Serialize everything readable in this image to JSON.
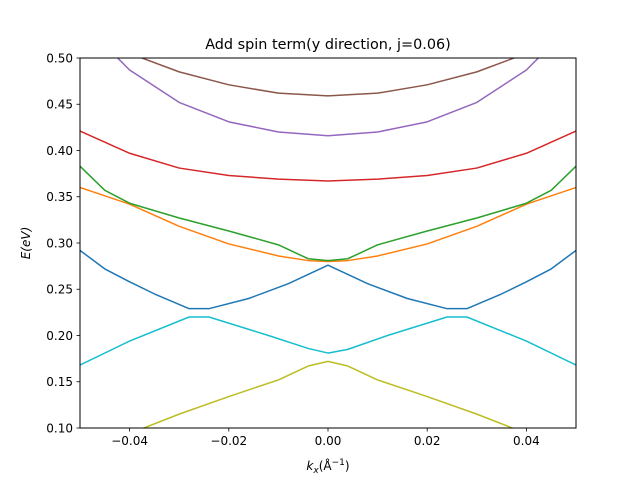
{
  "chart_data": {
    "type": "line",
    "title": "Add spin term(y direction, j=0.06)",
    "xlabel": "k_x(Å⁻¹)",
    "xlabel_main": "k",
    "xlabel_sub": "x",
    "xlabel_unit_open": "(Å",
    "xlabel_unit_sup": "−1",
    "xlabel_unit_close": ")",
    "ylabel": "E(eV)",
    "xlim": [
      -0.05,
      0.05
    ],
    "ylim": [
      0.1,
      0.5
    ],
    "xticks": [
      -0.04,
      -0.02,
      0.0,
      0.02,
      0.04
    ],
    "xtick_labels": [
      "−0.04",
      "−0.02",
      "0.00",
      "0.02",
      "0.04"
    ],
    "yticks": [
      0.1,
      0.15,
      0.2,
      0.25,
      0.3,
      0.35,
      0.4,
      0.45,
      0.5
    ],
    "ytick_labels": [
      "0.10",
      "0.15",
      "0.20",
      "0.25",
      "0.30",
      "0.35",
      "0.40",
      "0.45",
      "0.50"
    ],
    "grid": false,
    "legend": "none",
    "series": [
      {
        "name": "band-olive",
        "color": "#bcbd22",
        "x": [
          -0.05,
          -0.04,
          -0.03,
          -0.02,
          -0.01,
          -0.004,
          0.0,
          0.004,
          0.01,
          0.02,
          0.03,
          0.04,
          0.05
        ],
        "y": [
          0.081,
          0.094,
          0.115,
          0.134,
          0.152,
          0.167,
          0.172,
          0.167,
          0.152,
          0.134,
          0.115,
          0.094,
          0.081
        ]
      },
      {
        "name": "band-cyan",
        "color": "#17becf",
        "x": [
          -0.05,
          -0.04,
          -0.028,
          -0.024,
          -0.012,
          -0.004,
          0.0,
          0.004,
          0.012,
          0.024,
          0.028,
          0.04,
          0.05
        ],
        "y": [
          0.168,
          0.194,
          0.22,
          0.22,
          0.2,
          0.186,
          0.181,
          0.185,
          0.2,
          0.22,
          0.22,
          0.194,
          0.168
        ]
      },
      {
        "name": "band-blue",
        "color": "#1f77b4",
        "x": [
          -0.05,
          -0.045,
          -0.04,
          -0.035,
          -0.028,
          -0.024,
          -0.016,
          -0.008,
          0.0,
          0.008,
          0.016,
          0.024,
          0.028,
          0.035,
          0.04,
          0.045,
          0.05
        ],
        "y": [
          0.292,
          0.272,
          0.258,
          0.245,
          0.229,
          0.229,
          0.24,
          0.256,
          0.276,
          0.256,
          0.24,
          0.229,
          0.229,
          0.245,
          0.258,
          0.272,
          0.292
        ]
      },
      {
        "name": "band-orange",
        "color": "#ff7f0e",
        "x": [
          -0.05,
          -0.04,
          -0.03,
          -0.02,
          -0.01,
          -0.004,
          0.0,
          0.004,
          0.01,
          0.02,
          0.03,
          0.04,
          0.05
        ],
        "y": [
          0.36,
          0.342,
          0.318,
          0.299,
          0.286,
          0.281,
          0.28,
          0.281,
          0.286,
          0.299,
          0.318,
          0.342,
          0.36
        ]
      },
      {
        "name": "band-green",
        "color": "#2ca02c",
        "x": [
          -0.05,
          -0.045,
          -0.04,
          -0.03,
          -0.02,
          -0.01,
          -0.004,
          0.0,
          0.004,
          0.01,
          0.02,
          0.03,
          0.04,
          0.045,
          0.05
        ],
        "y": [
          0.383,
          0.357,
          0.343,
          0.327,
          0.313,
          0.298,
          0.283,
          0.281,
          0.283,
          0.298,
          0.313,
          0.327,
          0.343,
          0.357,
          0.383
        ]
      },
      {
        "name": "band-red",
        "color": "#d62728",
        "x": [
          -0.05,
          -0.04,
          -0.03,
          -0.02,
          -0.01,
          0.0,
          0.01,
          0.02,
          0.03,
          0.04,
          0.05
        ],
        "y": [
          0.421,
          0.397,
          0.381,
          0.373,
          0.369,
          0.367,
          0.369,
          0.373,
          0.381,
          0.397,
          0.421
        ]
      },
      {
        "name": "band-purple",
        "color": "#9467bd",
        "x": [
          -0.05,
          -0.04,
          -0.03,
          -0.02,
          -0.01,
          0.0,
          0.01,
          0.02,
          0.03,
          0.04,
          0.05
        ],
        "y": [
          0.541,
          0.487,
          0.452,
          0.431,
          0.42,
          0.416,
          0.42,
          0.431,
          0.452,
          0.487,
          0.541
        ]
      },
      {
        "name": "band-brown",
        "color": "#8c564b",
        "x": [
          -0.05,
          -0.04,
          -0.03,
          -0.02,
          -0.01,
          0.0,
          0.01,
          0.02,
          0.03,
          0.04,
          0.05
        ],
        "y": [
          0.526,
          0.505,
          0.485,
          0.471,
          0.462,
          0.459,
          0.462,
          0.471,
          0.485,
          0.505,
          0.526
        ]
      }
    ]
  }
}
